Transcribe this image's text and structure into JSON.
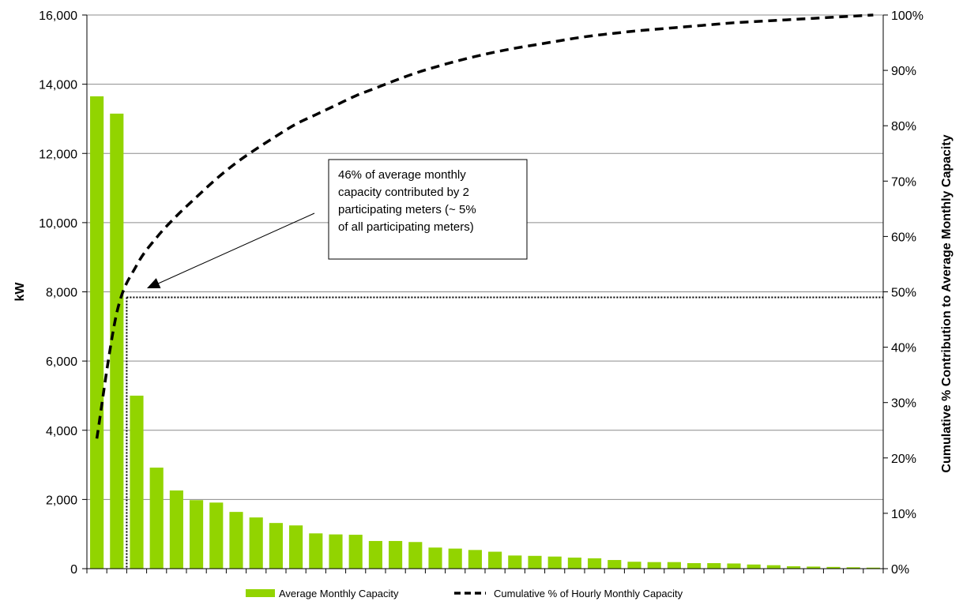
{
  "chart_data": {
    "type": "bar",
    "title": "",
    "ylabel": "kW",
    "y2label": "Cumulative % Contribution to Average Monthly Capacity",
    "ylim": [
      0,
      16000
    ],
    "y_ticks": [
      "0",
      "2,000",
      "4,000",
      "6,000",
      "8,000",
      "10,000",
      "12,000",
      "14,000",
      "16,000"
    ],
    "y2lim": [
      0,
      100
    ],
    "y2_ticks": [
      "0%",
      "10%",
      "20%",
      "30%",
      "40%",
      "50%",
      "60%",
      "70%",
      "80%",
      "90%",
      "100%"
    ],
    "grid": true,
    "legend_position": "bottom",
    "bar_color": "#92d400",
    "line_color": "#000000",
    "series": [
      {
        "name": "Average Monthly Capacity",
        "type": "bar",
        "axis": "left",
        "values": [
          13650,
          13150,
          5000,
          2920,
          2260,
          1980,
          1910,
          1640,
          1480,
          1320,
          1250,
          1020,
          990,
          980,
          800,
          800,
          770,
          610,
          580,
          540,
          490,
          380,
          370,
          350,
          320,
          300,
          250,
          200,
          190,
          190,
          160,
          160,
          150,
          120,
          100,
          70,
          60,
          50,
          40,
          30
        ]
      },
      {
        "name": "Cumulative % of Hourly Monthly Capacity",
        "type": "line",
        "style": "dashed",
        "axis": "right",
        "values": [
          23.5,
          46.2,
          54.8,
          59.8,
          63.7,
          67.1,
          70.4,
          73.3,
          75.8,
          78.1,
          80.3,
          82.0,
          83.7,
          85.4,
          86.8,
          88.2,
          89.5,
          90.6,
          91.6,
          92.5,
          93.3,
          94.0,
          94.6,
          95.2,
          95.8,
          96.3,
          96.7,
          97.1,
          97.4,
          97.7,
          98.0,
          98.3,
          98.6,
          98.8,
          99.0,
          99.2,
          99.4,
          99.6,
          99.8,
          100.0
        ]
      }
    ],
    "reference_line": {
      "y2_value": 49
    },
    "annotation": {
      "lines": [
        "46% of average monthly",
        "capacity contributed by 2",
        "participating meters (~ 5%",
        "of all participating meters)"
      ]
    }
  }
}
